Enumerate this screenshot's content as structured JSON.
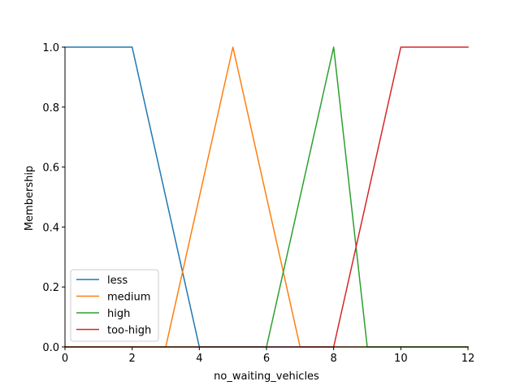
{
  "chart_data": {
    "type": "line",
    "title": "",
    "xlabel": "no_waiting_vehicles",
    "ylabel": "Membership",
    "xlim": [
      0,
      12
    ],
    "ylim": [
      0,
      1
    ],
    "x_ticks": [
      "0",
      "2",
      "4",
      "6",
      "8",
      "10",
      "12"
    ],
    "y_ticks": [
      "0.0",
      "0.2",
      "0.4",
      "0.6",
      "0.8",
      "1.0"
    ],
    "grid": false,
    "legend_position": "lower-left",
    "series": [
      {
        "name": "less",
        "color": "#1f77b4",
        "x": [
          0,
          2,
          4,
          12
        ],
        "y": [
          1,
          1,
          0,
          0
        ]
      },
      {
        "name": "medium",
        "color": "#ff7f0e",
        "x": [
          0,
          3,
          5,
          7,
          12
        ],
        "y": [
          0,
          0,
          1,
          0,
          0
        ]
      },
      {
        "name": "high",
        "color": "#2ca02c",
        "x": [
          0,
          6,
          8,
          9,
          12
        ],
        "y": [
          0,
          0,
          1,
          0,
          0
        ]
      },
      {
        "name": "too-high",
        "color": "#d62728",
        "x": [
          0,
          8,
          10,
          12
        ],
        "y": [
          0,
          0,
          1,
          1
        ]
      }
    ]
  }
}
